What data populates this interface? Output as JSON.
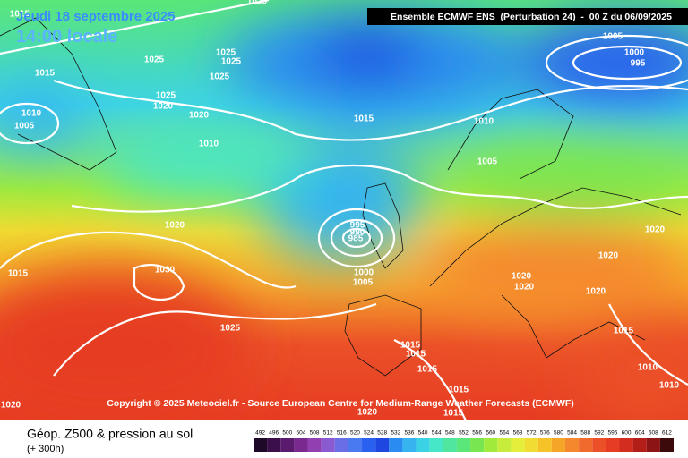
{
  "map": {
    "date": "Jeudi 18 septembre 2025",
    "time": "14:00 locale",
    "header": "Ensemble ECMWF ENS  (Perturbation 24)  -  00 Z du 06/09/2025",
    "copyright": "Copyright © 2025 Meteociel.fr - Source European Centre for Medium-Range Weather Forecasts (ECMWF)",
    "isobar_labels": [
      "1020",
      "1015",
      "1015",
      "1025",
      "1025",
      "1025",
      "1025",
      "1025",
      "1020",
      "1020",
      "1010",
      "1005",
      "1010",
      "1015",
      "1010",
      "1005",
      "1000",
      "995",
      "1005",
      "1020",
      "995",
      "990",
      "985",
      "1030",
      "1015",
      "1000",
      "1005",
      "1020",
      "1020",
      "1020",
      "1020",
      "1020",
      "1025",
      "1015",
      "1015",
      "1015",
      "1015",
      "1010",
      "1010",
      "1015",
      "1020",
      "1015",
      "1020"
    ]
  },
  "legend": {
    "title": "Géop. Z500 & pression au sol",
    "lead": "(+ 300h)",
    "scale": {
      "values": [
        492,
        496,
        500,
        504,
        508,
        512,
        516,
        520,
        524,
        528,
        532,
        536,
        540,
        544,
        548,
        552,
        556,
        560,
        564,
        568,
        572,
        576,
        580,
        584,
        588,
        592,
        596,
        600,
        604,
        608,
        612
      ],
      "colors": [
        "#1e0a28",
        "#3b0f4a",
        "#5a1a6e",
        "#7a2a8e",
        "#9040b0",
        "#8a5ad0",
        "#6a6ee6",
        "#4a7af0",
        "#2a60f0",
        "#1e46e0",
        "#2a8cf0",
        "#36b4f0",
        "#3cd2e6",
        "#46e6c8",
        "#50e6a0",
        "#5ae678",
        "#78e650",
        "#a0ea3c",
        "#c8ec3c",
        "#e6ee3c",
        "#f0dc32",
        "#f5c328",
        "#f5a528",
        "#f5872d",
        "#f06a2d",
        "#eb5028",
        "#e63c23",
        "#d22d1e",
        "#b41e19",
        "#8c1414",
        "#3c0a0a"
      ]
    }
  }
}
